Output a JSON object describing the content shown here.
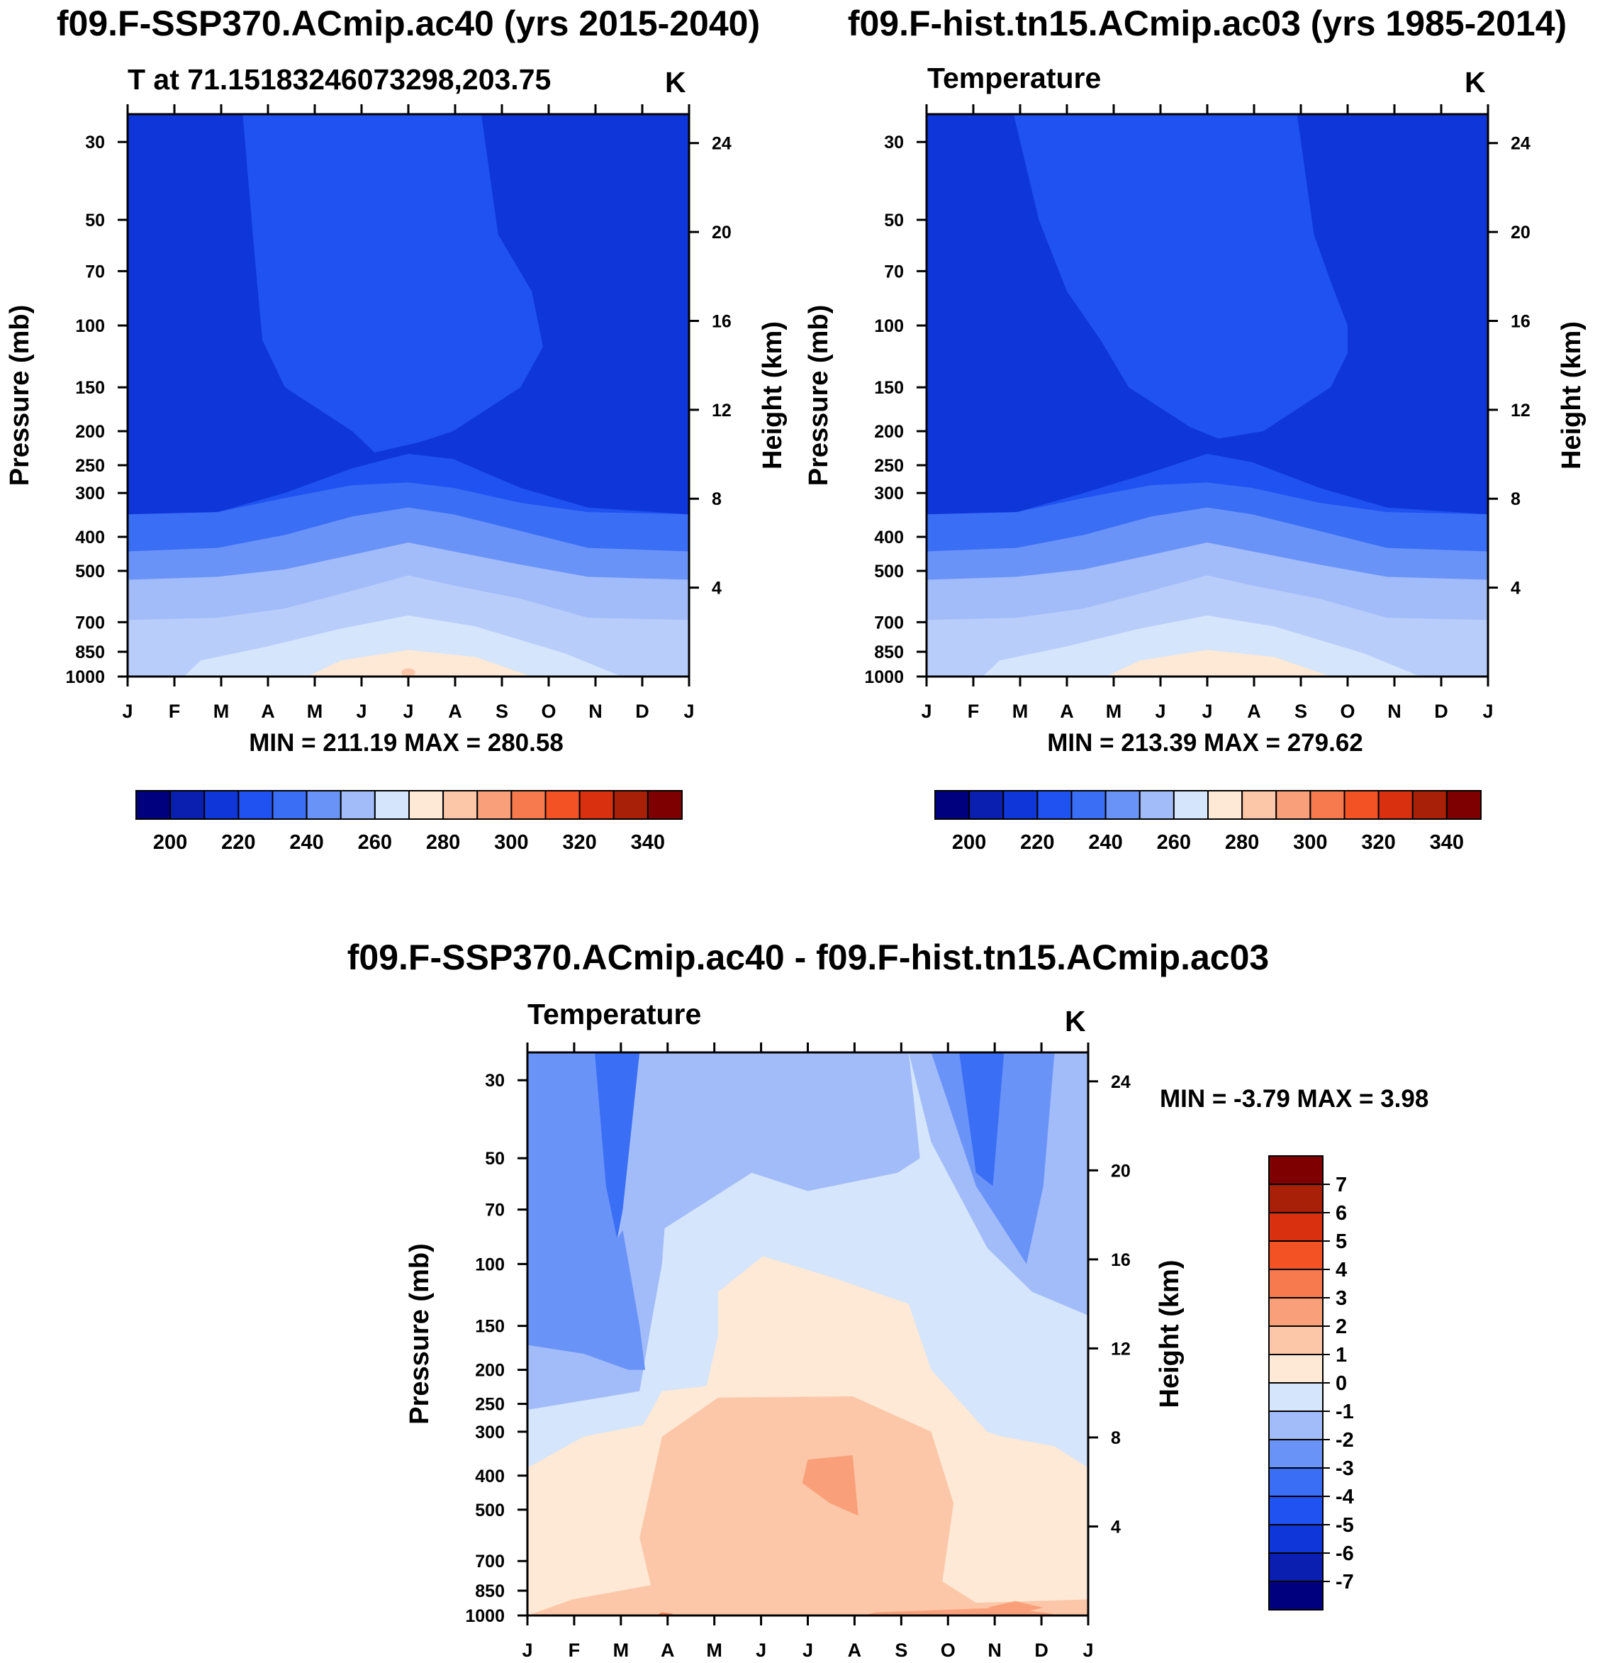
{
  "panels": [
    {
      "id": "ssp370",
      "title": "f09.F-SSP370.ACmip.ac40 (yrs 2015-2040)",
      "subtitle": "T at 71.15183246073298,203.75",
      "units": "K",
      "minmax": "MIN = 211.19 MAX = 280.58"
    },
    {
      "id": "hist",
      "title": "f09.F-hist.tn15.ACmip.ac03 (yrs 1985-2014)",
      "subtitle": "Temperature",
      "units": "K",
      "minmax": "MIN = 213.39 MAX = 279.62"
    },
    {
      "id": "diff",
      "title": "f09.F-SSP370.ACmip.ac40 - f09.F-hist.tn15.ACmip.ac03",
      "subtitle": "Temperature",
      "units": "K",
      "minmax": "MIN =  -3.79 MAX =   3.98"
    }
  ],
  "colors": {
    "abs_scale": [
      "#00007f",
      "#0a1fb0",
      "#0e36d8",
      "#1f52f0",
      "#3a6ef5",
      "#6a93f7",
      "#a2bcf9",
      "#d5e5fb",
      "#fde9d6",
      "#fbc7a8",
      "#f9a07a",
      "#f67a4e",
      "#f35324",
      "#d9300f",
      "#a82008",
      "#7f0000"
    ],
    "diff_scale": [
      "#00007f",
      "#0a1fb0",
      "#0e36d8",
      "#1f52f0",
      "#3a6ef5",
      "#6a93f7",
      "#a2bcf9",
      "#d5e5fb",
      "#fde9d6",
      "#fbc7a8",
      "#f9a07a",
      "#f67a4e",
      "#f35324",
      "#d9300f",
      "#a82008",
      "#7f0000"
    ]
  },
  "chart_data": [
    {
      "type": "heatmap",
      "id": "ssp370",
      "title": "f09.F-SSP370.ACmip.ac40 (yrs 2015-2040)",
      "xlabel": "",
      "ylabel": "Pressure (mb)",
      "ylabel_right": "Height (km)",
      "x_ticks": [
        "J",
        "F",
        "M",
        "A",
        "M",
        "J",
        "J",
        "A",
        "S",
        "O",
        "N",
        "D",
        "J"
      ],
      "y_ticks": [
        "30",
        "50",
        "70",
        "100",
        "150",
        "200",
        "250",
        "300",
        "400",
        "500",
        "700",
        "850",
        "1000"
      ],
      "y_right_ticks": [
        "24",
        "20",
        "16",
        "12",
        "8",
        "4"
      ],
      "ylim": [
        1000,
        25
      ],
      "colorbar": {
        "levels": [
          190,
          200,
          210,
          220,
          230,
          240,
          250,
          260,
          270,
          280,
          290,
          300,
          310,
          320,
          330,
          340,
          350
        ],
        "labels": [
          "200",
          "220",
          "240",
          "260",
          "280",
          "300",
          "320",
          "340"
        ]
      },
      "min": 211.19,
      "max": 280.58
    },
    {
      "type": "heatmap",
      "id": "hist",
      "title": "f09.F-hist.tn15.ACmip.ac03 (yrs 1985-2014)",
      "xlabel": "",
      "ylabel": "Pressure (mb)",
      "ylabel_right": "Height (km)",
      "x_ticks": [
        "J",
        "F",
        "M",
        "A",
        "M",
        "J",
        "J",
        "A",
        "S",
        "O",
        "N",
        "D",
        "J"
      ],
      "y_ticks": [
        "30",
        "50",
        "70",
        "100",
        "150",
        "200",
        "250",
        "300",
        "400",
        "500",
        "700",
        "850",
        "1000"
      ],
      "y_right_ticks": [
        "24",
        "20",
        "16",
        "12",
        "8",
        "4"
      ],
      "ylim": [
        1000,
        25
      ],
      "colorbar": {
        "levels": [
          190,
          200,
          210,
          220,
          230,
          240,
          250,
          260,
          270,
          280,
          290,
          300,
          310,
          320,
          330,
          340,
          350
        ],
        "labels": [
          "200",
          "220",
          "240",
          "260",
          "280",
          "300",
          "320",
          "340"
        ]
      },
      "min": 213.39,
      "max": 279.62
    },
    {
      "type": "heatmap",
      "id": "diff",
      "title": "f09.F-SSP370.ACmip.ac40 - f09.F-hist.tn15.ACmip.ac03",
      "xlabel": "",
      "ylabel": "Pressure (mb)",
      "ylabel_right": "Height (km)",
      "x_ticks": [
        "J",
        "F",
        "M",
        "A",
        "M",
        "J",
        "J",
        "A",
        "S",
        "O",
        "N",
        "D",
        "J"
      ],
      "y_ticks": [
        "30",
        "50",
        "70",
        "100",
        "150",
        "200",
        "250",
        "300",
        "400",
        "500",
        "700",
        "850",
        "1000"
      ],
      "y_right_ticks": [
        "24",
        "20",
        "16",
        "12",
        "8",
        "4"
      ],
      "ylim": [
        1000,
        25
      ],
      "colorbar": {
        "levels": [
          -8,
          -7,
          -6,
          -5,
          -4,
          -3,
          -2,
          -1,
          0,
          1,
          2,
          3,
          4,
          5,
          6,
          7,
          8
        ],
        "labels": [
          "7",
          "6",
          "5",
          "4",
          "3",
          "2",
          "1",
          "0",
          "-1",
          "-2",
          "-3",
          "-4",
          "-5",
          "-6",
          "-7"
        ]
      },
      "min": -3.79,
      "max": 3.98
    }
  ]
}
